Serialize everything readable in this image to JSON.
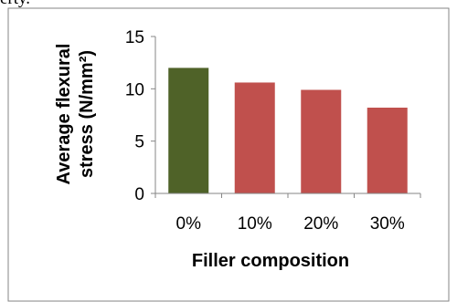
{
  "top_text_fragment": "erty.",
  "colors": {
    "baseline_bar": "#4F6228",
    "filler_bar": "#C0504D",
    "axis": "#868686",
    "frame": "#868686",
    "text": "#000000"
  },
  "chart_data": {
    "type": "bar",
    "categories": [
      "0%",
      "10%",
      "20%",
      "30%"
    ],
    "values": [
      12.0,
      10.6,
      9.9,
      8.2
    ],
    "bar_colors": [
      "#4F6228",
      "#C0504D",
      "#C0504D",
      "#C0504D"
    ],
    "xlabel": "Filler composition",
    "ylabel_line1": "Average flexural",
    "ylabel_line2": "stress (N/mm²)",
    "ylim": [
      0,
      15
    ],
    "yticks": [
      0,
      5,
      10,
      15
    ],
    "grid": false,
    "legend": "none"
  }
}
